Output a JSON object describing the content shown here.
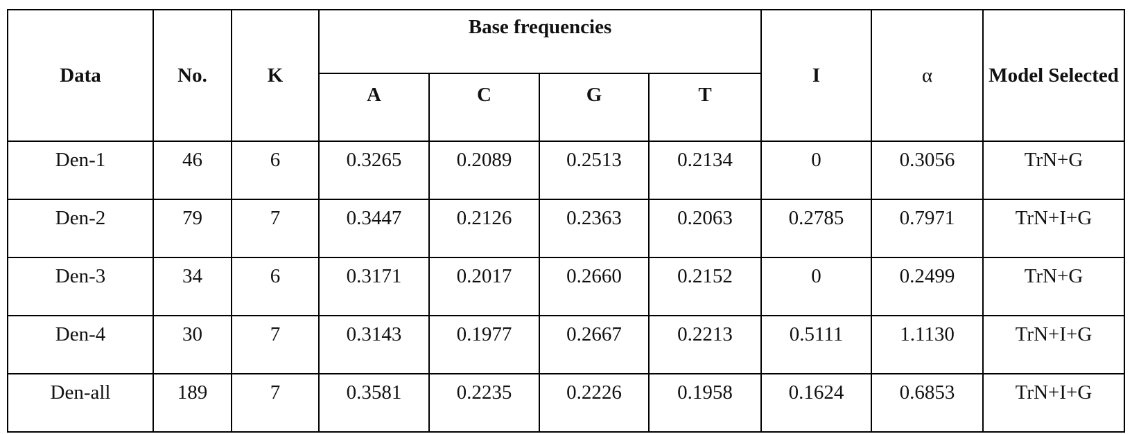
{
  "table": {
    "header": {
      "data": "Data",
      "no": "No.",
      "k": "K",
      "base": "Base frequencies",
      "sub": [
        "A",
        "C",
        "G",
        "T"
      ],
      "i": "I",
      "alpha": "α",
      "model": "Model Selected"
    },
    "rows": [
      [
        "Den-1",
        "46",
        "6",
        "0.3265",
        "0.2089",
        "0.2513",
        "0.2134",
        "0",
        "0.3056",
        "TrN+G"
      ],
      [
        "Den-2",
        "79",
        "7",
        "0.3447",
        "0.2126",
        "0.2363",
        "0.2063",
        "0.2785",
        "0.7971",
        "TrN+I+G"
      ],
      [
        "Den-3",
        "34",
        "6",
        "0.3171",
        "0.2017",
        "0.2660",
        "0.2152",
        "0",
        "0.2499",
        "TrN+G"
      ],
      [
        "Den-4",
        "30",
        "7",
        "0.3143",
        "0.1977",
        "0.2667",
        "0.2213",
        "0.5111",
        "1.1130",
        "TrN+I+G"
      ],
      [
        "Den-all",
        "189",
        "7",
        "0.3581",
        "0.2235",
        "0.2226",
        "0.1958",
        "0.1624",
        "0.6853",
        "TrN+I+G"
      ]
    ]
  }
}
